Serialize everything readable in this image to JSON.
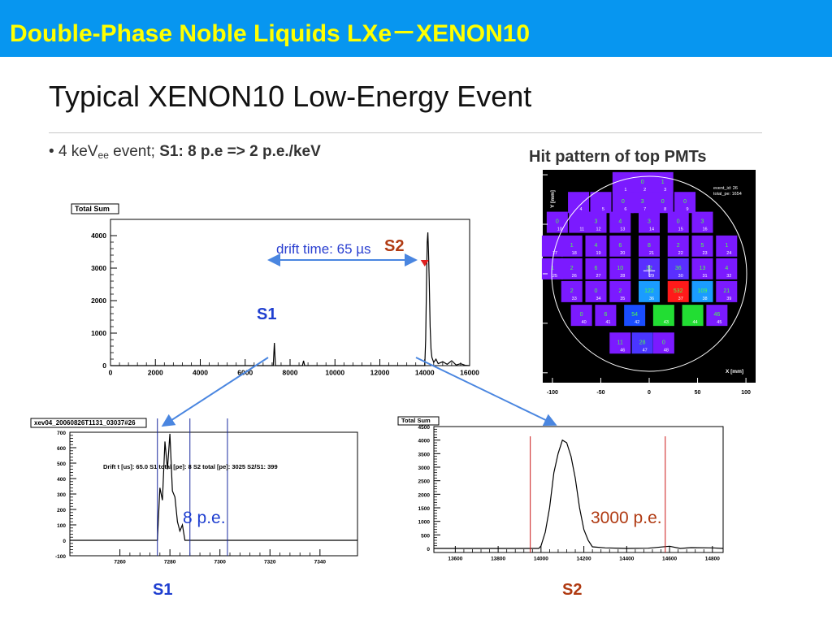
{
  "slide": {
    "title": "Double-Phase Noble Liquids LXe－XENON10",
    "heading": "Typical XENON10 Low-Energy Event",
    "bullet_prefix": "4 keV",
    "bullet_sub": "ee",
    "bullet_mid": " event; ",
    "bullet_bold": "S1: 8 p.e => 2 p.e./keV",
    "hit_title": "Hit pattern of top PMTs",
    "bottom_s1": "S1",
    "bottom_s2": "S2",
    "colors": {
      "banner": "#0796f0",
      "title": "#ffff00",
      "s1_label": "#1f3fd0",
      "s2_label": "#b03a12",
      "arrow": "#4a86e0"
    }
  },
  "chart_data": [
    {
      "type": "line",
      "title": "Total Sum",
      "xlim": [
        0,
        16000
      ],
      "ylim": [
        0,
        4500
      ],
      "xticks": [
        0,
        2000,
        4000,
        6000,
        8000,
        10000,
        12000,
        14000,
        16000
      ],
      "yticks": [
        0,
        1000,
        2000,
        3000,
        4000
      ],
      "annotation_drift": "drift time: 65 µs",
      "label_s1": "S1",
      "label_s2": "S2",
      "series": [
        {
          "x": [
            0,
            7250,
            7300,
            7350,
            8550,
            8600,
            8650,
            14000,
            14040,
            14080,
            14110,
            14140,
            14170,
            14200,
            14240,
            14280,
            14320,
            14400,
            14500,
            14600,
            14800,
            15000,
            15200,
            15400,
            15600,
            15800,
            16000
          ],
          "y": [
            0,
            0,
            700,
            0,
            0,
            150,
            0,
            0,
            800,
            2600,
            3800,
            4100,
            3500,
            2600,
            1200,
            500,
            250,
            100,
            200,
            60,
            120,
            40,
            150,
            20,
            60,
            10,
            0
          ]
        }
      ]
    },
    {
      "type": "line",
      "title": "xev04_20060826T1131_03037#26",
      "xlim": [
        7240,
        7355
      ],
      "ylim": [
        -100,
        700
      ],
      "xticks": [
        7260,
        7280,
        7300,
        7320,
        7340
      ],
      "yticks": [
        -100,
        0,
        100,
        200,
        300,
        400,
        500,
        600,
        700
      ],
      "info_text": "Drift t [us]: 65.0  S1 total [pe]:    8  S2 total [pe]:   3025  S2/S1:   399",
      "annotation": "8 p.e.",
      "series": [
        {
          "x": [
            7240,
            7275,
            7276,
            7277,
            7278,
            7279,
            7280,
            7281,
            7282,
            7283,
            7284,
            7285,
            7286,
            7355
          ],
          "y": [
            0,
            0,
            340,
            260,
            640,
            460,
            690,
            320,
            280,
            120,
            60,
            100,
            0,
            0
          ]
        }
      ]
    },
    {
      "type": "line",
      "title": "Total Sum",
      "xlim": [
        13500,
        14850
      ],
      "ylim": [
        -150,
        4500
      ],
      "xticks": [
        13600,
        13800,
        14000,
        14200,
        14400,
        14600,
        14800
      ],
      "yticks": [
        0,
        500,
        1000,
        1500,
        2000,
        2500,
        3000,
        3500,
        4000,
        4500
      ],
      "annotation": "3000 p.e.",
      "series": [
        {
          "x": [
            13500,
            13990,
            14000,
            14020,
            14040,
            14060,
            14080,
            14100,
            14120,
            14140,
            14160,
            14180,
            14200,
            14220,
            14240,
            14300,
            14400,
            14500,
            14600,
            14650,
            14700,
            14800,
            14850
          ],
          "y": [
            0,
            0,
            100,
            600,
            1500,
            2800,
            3500,
            4000,
            3900,
            3400,
            2600,
            1500,
            700,
            300,
            60,
            20,
            0,
            10,
            80,
            0,
            30,
            20,
            0
          ]
        }
      ]
    },
    {
      "type": "heatmap",
      "title": "Hit pattern of top PMTs",
      "xlim": [
        -110,
        110
      ],
      "ylim": [
        -110,
        105
      ],
      "xticks": [
        -100,
        -50,
        0,
        50,
        100
      ],
      "yticks": [
        -100,
        -50,
        0,
        50,
        100
      ],
      "xlabel": "X [mm]",
      "ylabel": "Y [mm]",
      "legend_text": [
        "event_id: 26",
        "total_pe: 1654"
      ],
      "cells": [
        {
          "cx": -27,
          "cy": 92,
          "pe": "",
          "id": "1",
          "c": "#7b1aff"
        },
        {
          "cx": -7,
          "cy": 92,
          "pe": "0",
          "id": "2",
          "c": "#7b1aff"
        },
        {
          "cx": 14,
          "cy": 92,
          "pe": "1",
          "id": "3",
          "c": "#7b1aff"
        },
        {
          "cx": -73,
          "cy": 72,
          "pe": "",
          "id": "4",
          "c": "#7b1aff"
        },
        {
          "cx": -50,
          "cy": 72,
          "pe": "",
          "id": "5",
          "c": "#7b1aff"
        },
        {
          "cx": -27,
          "cy": 72,
          "pe": "0",
          "id": "6",
          "c": "#7b1aff"
        },
        {
          "cx": -7,
          "cy": 72,
          "pe": "3",
          "id": "7",
          "c": "#7b1aff"
        },
        {
          "cx": 14,
          "cy": 72,
          "pe": "0",
          "id": "8",
          "c": "#7b1aff"
        },
        {
          "cx": 37,
          "cy": 72,
          "pe": "0",
          "id": "9",
          "c": "#7b1aff"
        },
        {
          "cx": -95,
          "cy": 52,
          "pe": "0",
          "id": "10",
          "c": "#7b1aff"
        },
        {
          "cx": -72,
          "cy": 52,
          "pe": "",
          "id": "11",
          "c": "#7b1aff"
        },
        {
          "cx": -55,
          "cy": 52,
          "pe": "3",
          "id": "12",
          "c": "#7b1aff"
        },
        {
          "cx": -30,
          "cy": 52,
          "pe": "4",
          "id": "13",
          "c": "#7b1aff"
        },
        {
          "cx": 0,
          "cy": 52,
          "pe": "3",
          "id": "14",
          "c": "#7b1aff"
        },
        {
          "cx": 30,
          "cy": 52,
          "pe": "0",
          "id": "15",
          "c": "#7b1aff"
        },
        {
          "cx": 55,
          "cy": 52,
          "pe": "3",
          "id": "16",
          "c": "#7b1aff"
        },
        {
          "cx": -100,
          "cy": 28,
          "pe": "",
          "id": "17",
          "c": "#7b1aff"
        },
        {
          "cx": -80,
          "cy": 28,
          "pe": "1",
          "id": "18",
          "c": "#7b1aff"
        },
        {
          "cx": -55,
          "cy": 28,
          "pe": "4",
          "id": "19",
          "c": "#7b1aff"
        },
        {
          "cx": -30,
          "cy": 28,
          "pe": "6",
          "id": "20",
          "c": "#7b1aff"
        },
        {
          "cx": 0,
          "cy": 28,
          "pe": "8",
          "id": "21",
          "c": "#7b1aff"
        },
        {
          "cx": 30,
          "cy": 28,
          "pe": "2",
          "id": "22",
          "c": "#7b1aff"
        },
        {
          "cx": 55,
          "cy": 28,
          "pe": "5",
          "id": "23",
          "c": "#7b1aff"
        },
        {
          "cx": 80,
          "cy": 28,
          "pe": "1",
          "id": "24",
          "c": "#7b1aff"
        },
        {
          "cx": -100,
          "cy": 5,
          "pe": "1",
          "id": "25",
          "c": "#7b1aff"
        },
        {
          "cx": -80,
          "cy": 5,
          "pe": "2",
          "id": "26",
          "c": "#7b1aff"
        },
        {
          "cx": -55,
          "cy": 5,
          "pe": "6",
          "id": "27",
          "c": "#7b1aff"
        },
        {
          "cx": -30,
          "cy": 5,
          "pe": "10",
          "id": "28",
          "c": "#7b1aff"
        },
        {
          "cx": 0,
          "cy": 5,
          "pe": "32",
          "id": "29",
          "c": "#5a2fff"
        },
        {
          "cx": 30,
          "cy": 5,
          "pe": "36",
          "id": "30",
          "c": "#5a2fff"
        },
        {
          "cx": 55,
          "cy": 5,
          "pe": "13",
          "id": "31",
          "c": "#7b1aff"
        },
        {
          "cx": 80,
          "cy": 5,
          "pe": "4",
          "id": "32",
          "c": "#7b1aff"
        },
        {
          "cx": -80,
          "cy": -18,
          "pe": "2",
          "id": "33",
          "c": "#7b1aff"
        },
        {
          "cx": -55,
          "cy": -18,
          "pe": "0",
          "id": "34",
          "c": "#7b1aff"
        },
        {
          "cx": -30,
          "cy": -18,
          "pe": "2",
          "id": "35",
          "c": "#7b1aff"
        },
        {
          "cx": 0,
          "cy": -18,
          "pe": "122",
          "id": "36",
          "c": "#1a9cff"
        },
        {
          "cx": 30,
          "cy": -18,
          "pe": "532",
          "id": "37",
          "c": "#ff1a1a"
        },
        {
          "cx": 55,
          "cy": -18,
          "pe": "109",
          "id": "38",
          "c": "#1a9cff"
        },
        {
          "cx": 80,
          "cy": -18,
          "pe": "21",
          "id": "39",
          "c": "#7b1aff"
        },
        {
          "cx": -70,
          "cy": -42,
          "pe": "0",
          "id": "40",
          "c": "#7b1aff"
        },
        {
          "cx": -45,
          "cy": -42,
          "pe": "6",
          "id": "41",
          "c": "#7b1aff"
        },
        {
          "cx": -15,
          "cy": -42,
          "pe": "54",
          "id": "42",
          "c": "#1a4dff"
        },
        {
          "cx": 15,
          "cy": -42,
          "pe": "",
          "id": "43",
          "c": "#22dd33"
        },
        {
          "cx": 45,
          "cy": -42,
          "pe": "",
          "id": "44",
          "c": "#22dd33"
        },
        {
          "cx": 70,
          "cy": -42,
          "pe": "46",
          "id": "45",
          "c": "#7b1aff"
        },
        {
          "cx": -30,
          "cy": -70,
          "pe": "11",
          "id": "46",
          "c": "#7b1aff"
        },
        {
          "cx": -7,
          "cy": -70,
          "pe": "28",
          "id": "47",
          "c": "#4a35ff"
        },
        {
          "cx": 15,
          "cy": -70,
          "pe": "0",
          "id": "48",
          "c": "#7b1aff"
        }
      ]
    }
  ]
}
